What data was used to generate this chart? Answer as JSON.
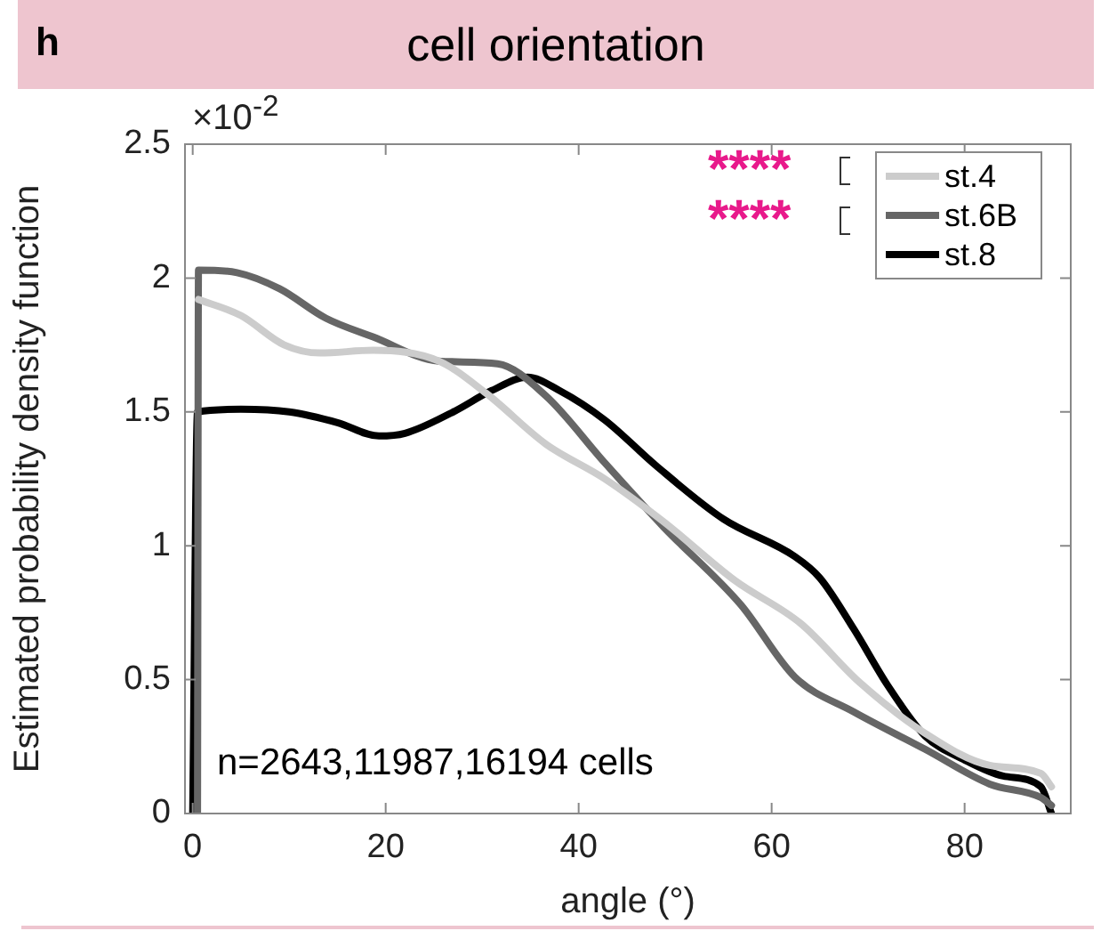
{
  "chart_data": {
    "type": "line",
    "title": "cell orientation",
    "xlabel": "angle (°)",
    "ylabel": "Estimated probability density function",
    "xlim": [
      -0.8,
      91
    ],
    "xticks": [
      0,
      20,
      40,
      60,
      80
    ],
    "ylim": [
      0,
      2.5
    ],
    "yticks": [
      0,
      0.5,
      1,
      1.5,
      2,
      2.5
    ],
    "grid": false,
    "legend": "top right",
    "marker": "none",
    "line_style": "solid",
    "annotations": [
      "h",
      "****",
      "****",
      "n=2643,11987,16194 cells",
      "×10$^{-2}$"
    ],
    "series": [
      {
        "name": "st.4",
        "color": "#cccccc",
        "x": [
          0.6,
          5,
          9.5,
          13.2,
          18.7,
          25.5,
          30.4,
          36.6,
          42.7,
          48.8,
          56.2,
          63,
          69.1,
          75.9,
          82.6,
          87.9,
          89
        ],
        "values": [
          1.92,
          1.86,
          1.75,
          1.72,
          1.73,
          1.69,
          1.57,
          1.38,
          1.25,
          1.09,
          0.87,
          0.71,
          0.49,
          0.3,
          0.18,
          0.15,
          0.1
        ]
      },
      {
        "name": "st.6B",
        "color": "#666666",
        "x": [
          0.5,
          0.6,
          4.6,
          9,
          13.8,
          18.7,
          25.5,
          31.6,
          36.6,
          42.7,
          48.8,
          56.8,
          62.4,
          68.5,
          75.9,
          82.6,
          87.9,
          89
        ],
        "values": [
          0,
          2.03,
          2.02,
          1.96,
          1.85,
          1.78,
          1.69,
          1.68,
          1.56,
          1.31,
          1.07,
          0.78,
          0.51,
          0.38,
          0.24,
          0.11,
          0.06,
          0.03
        ]
      },
      {
        "name": "st.8",
        "color": "#000000",
        "x": [
          0,
          0.5,
          5,
          10,
          15,
          19.3,
          22,
          27,
          31,
          34.7,
          38,
          42.7,
          48,
          55,
          62.4,
          65,
          68.5,
          72,
          75.9,
          80,
          84,
          87.9,
          89
        ],
        "values": [
          0,
          1.5,
          1.51,
          1.5,
          1.46,
          1.41,
          1.42,
          1.5,
          1.58,
          1.63,
          1.58,
          1.47,
          1.3,
          1.1,
          0.96,
          0.88,
          0.69,
          0.48,
          0.29,
          0.2,
          0.14,
          0.1,
          0
        ]
      }
    ]
  }
}
